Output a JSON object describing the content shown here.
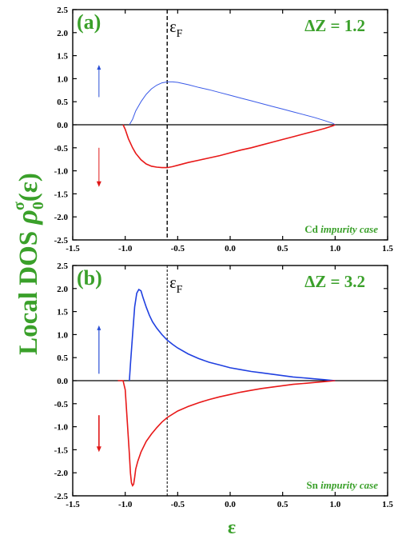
{
  "chart_data": [
    {
      "type": "line",
      "panel_label": "(a)",
      "fermi_label": "ε",
      "fermi_subscript": "F",
      "fermi_x": -0.6,
      "annotation": "ΔZ = 1.2",
      "case_element": "Cd",
      "case_suffix": "impurity case",
      "xlim": [
        -1.5,
        1.5
      ],
      "ylim": [
        -2.5,
        2.5
      ],
      "xticks": [
        "-1.5",
        "-1.0",
        "-0.5",
        "0.0",
        "0.5",
        "1.0",
        "1.5"
      ],
      "yticks": [
        "-2.5",
        "-2.0",
        "-1.5",
        "-1.0",
        "-0.5",
        "0.0",
        "0.5",
        "1.0",
        "1.5",
        "2.0",
        "2.5"
      ],
      "spin_arrow_colors": {
        "up": "#2a4fd6",
        "down": "#e01818"
      },
      "series": [
        {
          "color": "#3a5ae8",
          "x": [
            -0.96,
            -0.93,
            -0.9,
            -0.85,
            -0.8,
            -0.75,
            -0.7,
            -0.65,
            -0.6,
            -0.55,
            -0.5,
            -0.4,
            -0.3,
            -0.2,
            -0.1,
            0.0,
            0.1,
            0.2,
            0.3,
            0.4,
            0.5,
            0.6,
            0.7,
            0.8,
            0.9,
            0.98,
            1.0
          ],
          "y": [
            0.0,
            0.12,
            0.3,
            0.5,
            0.66,
            0.78,
            0.86,
            0.91,
            0.93,
            0.93,
            0.92,
            0.87,
            0.81,
            0.76,
            0.7,
            0.64,
            0.58,
            0.52,
            0.46,
            0.4,
            0.34,
            0.28,
            0.22,
            0.16,
            0.09,
            0.03,
            0.0
          ]
        },
        {
          "color": "#e81818",
          "x": [
            -1.02,
            -1.0,
            -0.97,
            -0.93,
            -0.9,
            -0.85,
            -0.8,
            -0.75,
            -0.7,
            -0.65,
            -0.6,
            -0.55,
            -0.5,
            -0.4,
            -0.3,
            -0.2,
            -0.1,
            0.0,
            0.1,
            0.2,
            0.3,
            0.4,
            0.5,
            0.6,
            0.7,
            0.8,
            0.9,
            0.98,
            1.0
          ],
          "y": [
            0.0,
            -0.1,
            -0.3,
            -0.5,
            -0.62,
            -0.76,
            -0.85,
            -0.9,
            -0.92,
            -0.93,
            -0.93,
            -0.91,
            -0.88,
            -0.82,
            -0.77,
            -0.72,
            -0.67,
            -0.61,
            -0.55,
            -0.5,
            -0.44,
            -0.38,
            -0.32,
            -0.26,
            -0.2,
            -0.14,
            -0.08,
            -0.02,
            0.0
          ]
        }
      ]
    },
    {
      "type": "line",
      "panel_label": "(b)",
      "fermi_label": "ε",
      "fermi_subscript": "F",
      "fermi_x": -0.6,
      "annotation": "ΔZ = 3.2",
      "case_element": "Sn",
      "case_suffix": "impurity case",
      "xlim": [
        -1.5,
        1.5
      ],
      "ylim": [
        -2.5,
        2.5
      ],
      "xticks": [
        "-1.5",
        "-1.0",
        "-0.5",
        "0.0",
        "0.5",
        "1.0",
        "1.5"
      ],
      "yticks": [
        "-2.5",
        "-2.0",
        "-1.5",
        "-1.0",
        "-0.5",
        "0.0",
        "0.5",
        "1.0",
        "1.5",
        "2.0",
        "2.5"
      ],
      "spin_arrow_colors": {
        "up": "#2a4fd6",
        "down": "#e01818"
      },
      "series": [
        {
          "color": "#2040e0",
          "x": [
            -0.96,
            -0.95,
            -0.93,
            -0.91,
            -0.89,
            -0.87,
            -0.85,
            -0.83,
            -0.8,
            -0.77,
            -0.74,
            -0.7,
            -0.65,
            -0.6,
            -0.55,
            -0.5,
            -0.4,
            -0.3,
            -0.2,
            -0.1,
            0.0,
            0.1,
            0.2,
            0.3,
            0.4,
            0.5,
            0.6,
            0.7,
            0.8,
            0.9,
            1.0
          ],
          "y": [
            0.0,
            0.35,
            1.0,
            1.6,
            1.9,
            1.98,
            1.95,
            1.8,
            1.6,
            1.42,
            1.28,
            1.14,
            1.0,
            0.88,
            0.79,
            0.71,
            0.58,
            0.48,
            0.4,
            0.34,
            0.28,
            0.24,
            0.2,
            0.17,
            0.14,
            0.11,
            0.08,
            0.06,
            0.04,
            0.02,
            0.0
          ]
        },
        {
          "color": "#e81818",
          "x": [
            -1.07,
            -1.02,
            -1.0,
            -0.98,
            -0.96,
            -0.95,
            -0.94,
            -0.93,
            -0.92,
            -0.91,
            -0.9,
            -0.88,
            -0.85,
            -0.8,
            -0.75,
            -0.7,
            -0.65,
            -0.6,
            -0.5,
            -0.4,
            -0.3,
            -0.2,
            -0.1,
            0.0,
            0.1,
            0.2,
            0.3,
            0.4,
            0.5,
            0.6,
            0.7,
            0.8,
            0.9,
            1.0
          ],
          "y": [
            0.0,
            0.0,
            -0.2,
            -0.9,
            -1.6,
            -2.0,
            -2.22,
            -2.28,
            -2.25,
            -2.1,
            -1.92,
            -1.75,
            -1.55,
            -1.32,
            -1.16,
            -1.02,
            -0.9,
            -0.8,
            -0.66,
            -0.56,
            -0.48,
            -0.41,
            -0.35,
            -0.3,
            -0.25,
            -0.21,
            -0.17,
            -0.14,
            -0.11,
            -0.08,
            -0.06,
            -0.04,
            -0.02,
            0.0
          ]
        }
      ]
    }
  ],
  "y_axis_label": {
    "main": "Local DOS ",
    "rho": "ρ",
    "sub": "0",
    "sup": "σ",
    "arg": "(ε)"
  },
  "x_axis_label": "ε"
}
